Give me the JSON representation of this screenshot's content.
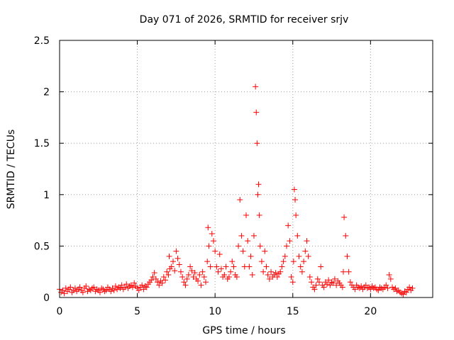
{
  "chart_data": {
    "type": "scatter",
    "title": "Day 071 of 2026, SRMTID for receiver srjv",
    "xlabel": "GPS time / hours",
    "ylabel": "SRMTID / TECUs",
    "xlim": [
      0,
      24
    ],
    "ylim": [
      0,
      2.5
    ],
    "xticks": [
      0,
      5,
      10,
      15,
      20
    ],
    "xtick_labels": [
      "0",
      "5",
      "10",
      "15",
      "20"
    ],
    "yticks": [
      0,
      0.5,
      1,
      1.5,
      2,
      2.5
    ],
    "ytick_labels": [
      "0",
      "0.5",
      "1",
      "1.5",
      "2",
      "2.5"
    ],
    "grid": true,
    "marker": "+",
    "color": "#ff0000",
    "series": [
      {
        "name": "srjv",
        "x": [
          0.0,
          0.1,
          0.2,
          0.3,
          0.4,
          0.5,
          0.6,
          0.7,
          0.8,
          0.9,
          1.0,
          1.1,
          1.2,
          1.3,
          1.4,
          1.5,
          1.6,
          1.7,
          1.8,
          1.9,
          2.0,
          2.1,
          2.2,
          2.3,
          2.4,
          2.5,
          2.6,
          2.7,
          2.8,
          2.9,
          3.0,
          3.1,
          3.2,
          3.3,
          3.4,
          3.5,
          3.6,
          3.7,
          3.8,
          3.9,
          4.0,
          4.1,
          4.2,
          4.3,
          4.4,
          4.5,
          4.6,
          4.7,
          4.8,
          4.9,
          5.0,
          5.1,
          5.2,
          5.3,
          5.4,
          5.5,
          5.6,
          5.7,
          5.8,
          5.9,
          6.0,
          6.1,
          6.2,
          6.3,
          6.4,
          6.5,
          6.6,
          6.7,
          6.8,
          6.9,
          7.0,
          7.05,
          7.1,
          7.2,
          7.3,
          7.4,
          7.5,
          7.6,
          7.7,
          7.8,
          7.9,
          8.0,
          8.1,
          8.2,
          8.3,
          8.4,
          8.5,
          8.6,
          8.7,
          8.8,
          8.9,
          9.0,
          9.1,
          9.2,
          9.3,
          9.4,
          9.5,
          9.55,
          9.6,
          9.7,
          9.8,
          9.9,
          10.0,
          10.1,
          10.2,
          10.3,
          10.4,
          10.5,
          10.6,
          10.7,
          10.8,
          10.9,
          11.0,
          11.1,
          11.2,
          11.3,
          11.4,
          11.5,
          11.6,
          11.7,
          11.8,
          11.9,
          12.0,
          12.1,
          12.2,
          12.3,
          12.4,
          12.5,
          12.6,
          12.65,
          12.7,
          12.75,
          12.8,
          12.85,
          12.9,
          13.0,
          13.1,
          13.2,
          13.3,
          13.4,
          13.5,
          13.6,
          13.7,
          13.8,
          13.9,
          14.0,
          14.1,
          14.2,
          14.3,
          14.4,
          14.5,
          14.6,
          14.7,
          14.8,
          14.9,
          15.0,
          15.05,
          15.1,
          15.15,
          15.2,
          15.3,
          15.4,
          15.5,
          15.6,
          15.7,
          15.8,
          15.9,
          16.0,
          16.1,
          16.2,
          16.3,
          16.4,
          16.5,
          16.6,
          16.7,
          16.8,
          16.9,
          17.0,
          17.1,
          17.2,
          17.3,
          17.4,
          17.5,
          17.6,
          17.7,
          17.8,
          17.9,
          18.0,
          18.1,
          18.2,
          18.25,
          18.3,
          18.4,
          18.5,
          18.6,
          18.7,
          18.8,
          18.9,
          19.0,
          19.1,
          19.2,
          19.3,
          19.4,
          19.5,
          19.6,
          19.7,
          19.8,
          19.9,
          20.0,
          20.1,
          20.2,
          20.3,
          20.4,
          20.5,
          20.6,
          20.7,
          20.8,
          20.9,
          21.0,
          21.1,
          21.2,
          21.3,
          21.4,
          21.5,
          21.6,
          21.7,
          21.8,
          21.9,
          22.0,
          22.1,
          22.2,
          22.3,
          22.4,
          22.5,
          22.6,
          22.7
        ],
        "y": [
          0.08,
          0.05,
          0.07,
          0.04,
          0.09,
          0.06,
          0.08,
          0.1,
          0.05,
          0.07,
          0.09,
          0.06,
          0.08,
          0.1,
          0.07,
          0.05,
          0.09,
          0.11,
          0.06,
          0.08,
          0.07,
          0.09,
          0.1,
          0.06,
          0.08,
          0.07,
          0.05,
          0.09,
          0.08,
          0.06,
          0.07,
          0.1,
          0.08,
          0.06,
          0.09,
          0.07,
          0.11,
          0.08,
          0.1,
          0.09,
          0.12,
          0.08,
          0.1,
          0.13,
          0.09,
          0.11,
          0.12,
          0.1,
          0.14,
          0.11,
          0.09,
          0.07,
          0.1,
          0.12,
          0.08,
          0.11,
          0.1,
          0.13,
          0.15,
          0.17,
          0.2,
          0.24,
          0.18,
          0.15,
          0.12,
          0.16,
          0.14,
          0.2,
          0.17,
          0.25,
          0.22,
          0.4,
          0.28,
          0.3,
          0.35,
          0.26,
          0.45,
          0.38,
          0.32,
          0.25,
          0.2,
          0.15,
          0.12,
          0.18,
          0.22,
          0.3,
          0.26,
          0.2,
          0.24,
          0.18,
          0.16,
          0.22,
          0.12,
          0.25,
          0.2,
          0.15,
          0.35,
          0.68,
          0.5,
          0.3,
          0.62,
          0.55,
          0.45,
          0.3,
          0.25,
          0.42,
          0.28,
          0.2,
          0.22,
          0.3,
          0.18,
          0.2,
          0.25,
          0.35,
          0.3,
          0.22,
          0.2,
          0.5,
          0.95,
          0.6,
          0.45,
          0.3,
          0.8,
          0.55,
          0.3,
          0.4,
          0.22,
          0.6,
          2.05,
          1.8,
          1.5,
          1.0,
          1.1,
          0.8,
          0.5,
          0.35,
          0.25,
          0.45,
          0.3,
          0.22,
          0.18,
          0.25,
          0.2,
          0.22,
          0.24,
          0.2,
          0.23,
          0.25,
          0.3,
          0.35,
          0.4,
          0.5,
          0.7,
          0.55,
          0.2,
          0.15,
          0.35,
          1.05,
          0.95,
          0.8,
          0.6,
          0.4,
          0.3,
          0.25,
          0.35,
          0.45,
          0.55,
          0.4,
          0.2,
          0.15,
          0.1,
          0.08,
          0.12,
          0.18,
          0.15,
          0.3,
          0.12,
          0.1,
          0.15,
          0.13,
          0.17,
          0.12,
          0.15,
          0.14,
          0.18,
          0.12,
          0.16,
          0.14,
          0.12,
          0.1,
          0.25,
          0.78,
          0.6,
          0.4,
          0.25,
          0.15,
          0.12,
          0.1,
          0.08,
          0.12,
          0.1,
          0.09,
          0.11,
          0.08,
          0.1,
          0.12,
          0.09,
          0.1,
          0.08,
          0.11,
          0.09,
          0.1,
          0.08,
          0.07,
          0.1,
          0.09,
          0.08,
          0.1,
          0.12,
          0.09,
          0.22,
          0.18,
          0.1,
          0.08,
          0.09,
          0.06,
          0.07,
          0.05,
          0.04,
          0.03,
          0.06,
          0.05,
          0.08,
          0.1,
          0.07,
          0.09
        ]
      }
    ]
  }
}
